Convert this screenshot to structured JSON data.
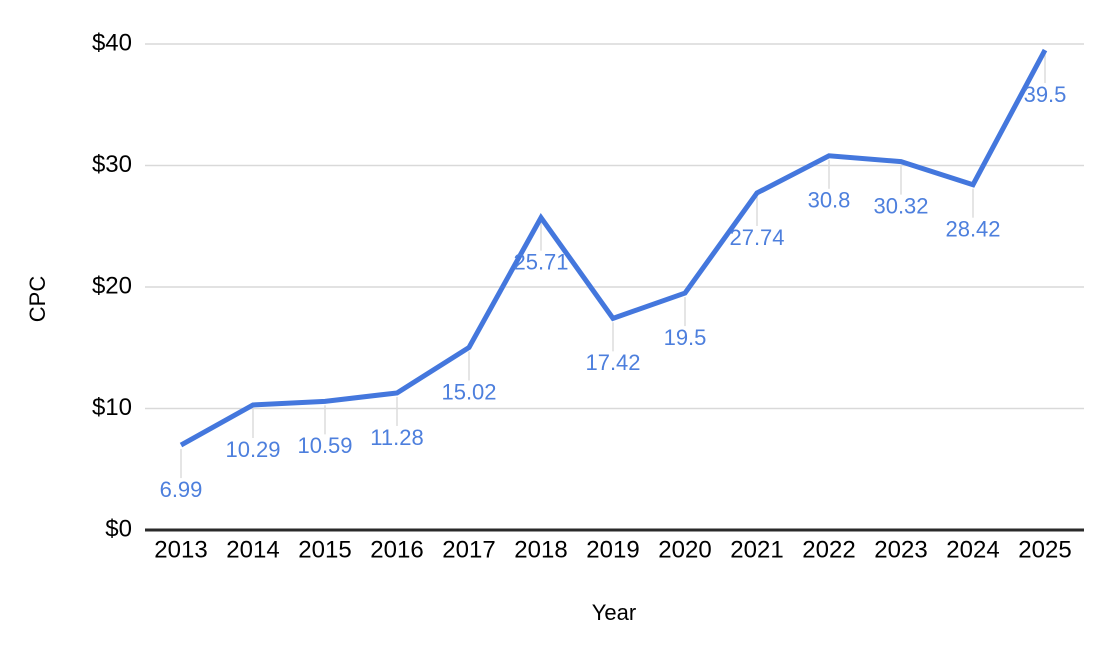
{
  "chart_data": {
    "type": "line",
    "title": "",
    "xlabel": "Year",
    "ylabel": "CPC",
    "categories": [
      "2013",
      "2014",
      "2015",
      "2016",
      "2017",
      "2018",
      "2019",
      "2020",
      "2021",
      "2022",
      "2023",
      "2024",
      "2025"
    ],
    "values": [
      6.99,
      10.29,
      10.59,
      11.28,
      15.02,
      25.71,
      17.42,
      19.5,
      27.74,
      30.8,
      30.32,
      28.42,
      39.5
    ],
    "point_labels": [
      "6.99",
      "10.29",
      "10.59",
      "11.28",
      "15.02",
      "25.71",
      "17.42",
      "19.5",
      "27.74",
      "30.8",
      "30.32",
      "28.42",
      "39.5"
    ],
    "y_ticks": [
      "$0",
      "$10",
      "$20",
      "$30",
      "$40"
    ],
    "y_tick_values": [
      0,
      10,
      20,
      30,
      40
    ],
    "ylim": [
      0,
      40
    ],
    "grid": true,
    "legend": "none",
    "colors": {
      "line": "#4477dd",
      "data_label": "#4d7fdd",
      "grid": "#d9d9d9",
      "axis": "#2a2a2a",
      "leader": "#dcdcdc",
      "text": "#000000",
      "background": "#ffffff"
    }
  }
}
